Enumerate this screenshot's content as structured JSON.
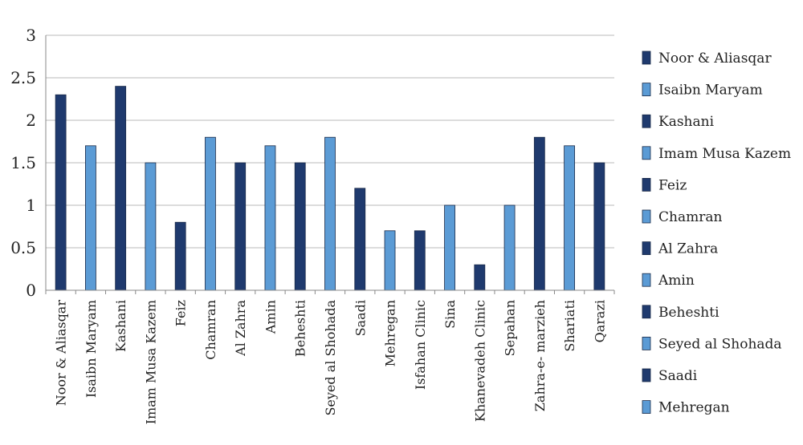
{
  "chart_data": {
    "type": "bar",
    "categories": [
      "Noor & Aliasqar",
      "Isaibn Maryam",
      "Kashani",
      "Imam Musa Kazem",
      "Feiz",
      "Chamran",
      "Al Zahra",
      "Amin",
      "Beheshti",
      "Seyed al Shohada",
      "Saadi",
      "Mehregan",
      "Isfahan Clinic",
      "Sina",
      "Khanevadeh Clinic",
      "Sepahan",
      "Zahra-e- marzieh",
      "Shariati",
      "Qarazi"
    ],
    "values": [
      2.3,
      1.7,
      2.4,
      1.5,
      0.8,
      1.8,
      1.5,
      1.7,
      1.5,
      1.8,
      1.2,
      0.7,
      0.7,
      1.0,
      0.3,
      1.0,
      1.8,
      1.7,
      1.5
    ],
    "yticks": [
      "0",
      "0.5",
      "1",
      "1.5",
      "2",
      "2.5",
      "3"
    ],
    "ylim": [
      0,
      3
    ],
    "grid": "horizontal",
    "legend_position": "right",
    "legend_entries": [
      "Noor & Aliasqar",
      "Isaibn Maryam",
      "Kashani",
      "Imam Musa Kazem",
      "Feiz",
      "Chamran",
      "Al Zahra",
      "Amin",
      "Beheshti",
      "Seyed al Shohada",
      "Saadi",
      "Mehregan"
    ],
    "colors": {
      "dark": "#1f3a6e",
      "light": "#5b9bd5",
      "grid": "#b8b8b8",
      "axis": "#888888"
    },
    "title": "",
    "xlabel": "",
    "ylabel": ""
  }
}
